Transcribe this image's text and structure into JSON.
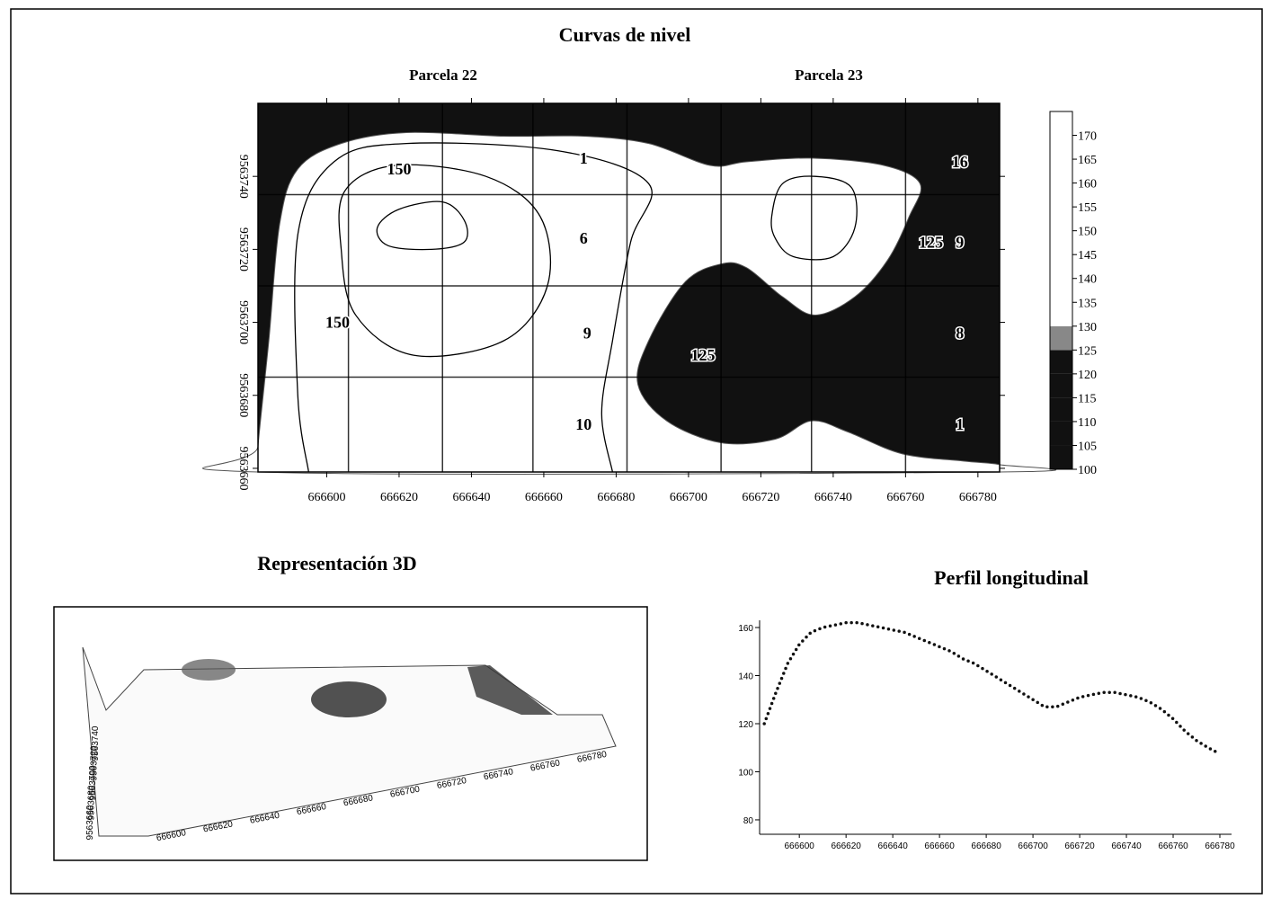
{
  "chart_data": [
    {
      "type": "contour",
      "title": "Curvas de nivel",
      "top_labels": [
        "Parcela 22",
        "Parcela 23"
      ],
      "xlim": [
        666581,
        666786
      ],
      "xticks": [
        666600,
        666620,
        666640,
        666660,
        666680,
        666700,
        666720,
        666740,
        666760,
        666780
      ],
      "ylim": [
        9563659,
        9563760
      ],
      "yticks": [
        9563660,
        9563680,
        9563700,
        9563720,
        9563740
      ],
      "parcel_grid": {
        "x": [
          666606,
          666632,
          666657,
          666683,
          666709,
          666734,
          666760
        ],
        "y": [
          9563735,
          9563710,
          9563685
        ]
      },
      "light_area": {
        "x": [
          666581,
          666584,
          666587,
          666592,
          666604,
          666622,
          666649,
          666671,
          666689,
          666706,
          666716,
          666734,
          666754,
          666764,
          666761,
          666755,
          666746,
          666735,
          666726,
          666716,
          666709,
          666699,
          666689,
          666686,
          666694,
          666709,
          666724,
          666734,
          666744,
          666759,
          666776,
          666786,
          666786,
          666581
        ],
        "y": [
          9563666,
          9563695,
          9563727,
          9563742,
          9563749,
          9563752,
          9563751,
          9563751,
          9563749,
          9563743,
          9563744,
          9563745,
          9563743,
          9563738,
          9563729,
          9563717,
          9563707,
          9563702,
          9563707,
          9563715,
          9563716,
          9563711,
          9563695,
          9563683,
          9563673,
          9563667,
          9563668,
          9563673,
          9563670,
          9563664,
          9563662,
          9563661,
          9563659,
          9563659
        ]
      },
      "contours": [
        {
          "x": [
            666614,
            666620,
            666632,
            666638,
            666638,
            666629,
            666617
          ],
          "y": [
            9563726,
            9563731,
            9563733,
            9563728,
            9563722,
            9563720,
            9563721
          ],
          "closed": true
        },
        {
          "x": [
            666604,
            666605,
            666619,
            666644,
            666659,
            666661,
            666649,
            666624,
            666608
          ],
          "y": [
            9563720,
            9563736,
            9563743,
            9563740,
            9563729,
            9563710,
            9563695,
            9563691,
            9563702
          ],
          "closed": true
        },
        {
          "x": [
            666595,
            666592,
            666592,
            666602,
            666622,
            666664,
            666689,
            666684,
            666679,
            666676,
            666679
          ],
          "y": [
            9563659,
            9563680,
            9563724,
            9563744,
            9563749,
            9563747,
            9563738,
            9563722,
            9563695,
            9563675,
            9563659
          ],
          "closed": false
        },
        {
          "x": [
            666723,
            666726,
            666735,
            666745,
            666746,
            666740,
            666729,
            666724
          ],
          "y": [
            9563729,
            9563738,
            9563740,
            9563737,
            9563726,
            9563718,
            9563718,
            9563723
          ],
          "closed": true
        }
      ],
      "annotations": [
        {
          "text": "150",
          "x": 666620,
          "y": 9563742
        },
        {
          "text": "150",
          "x": 666603,
          "y": 9563700
        },
        {
          "text": "125",
          "x": 666767,
          "y": 9563722
        },
        {
          "text": "125",
          "x": 666704,
          "y": 9563691
        },
        {
          "text": "1",
          "x": 666671,
          "y": 9563745
        },
        {
          "text": "6",
          "x": 666671,
          "y": 9563723
        },
        {
          "text": "9",
          "x": 666672,
          "y": 9563697
        },
        {
          "text": "10",
          "x": 666671,
          "y": 9563672
        },
        {
          "text": "16",
          "x": 666775,
          "y": 9563744
        },
        {
          "text": "9",
          "x": 666775,
          "y": 9563722
        },
        {
          "text": "8",
          "x": 666775,
          "y": 9563697
        },
        {
          "text": "1",
          "x": 666775,
          "y": 9563672
        }
      ],
      "colorbar": {
        "lim": [
          100,
          175
        ],
        "ticks": [
          100,
          105,
          110,
          115,
          120,
          125,
          130,
          135,
          140,
          145,
          150,
          155,
          160,
          165,
          170
        ],
        "dark_below": 125,
        "speckle_below": 130
      }
    },
    {
      "type": "surface3d",
      "title": "Representación 3D",
      "xlim": [
        666590,
        666790
      ],
      "xticks": [
        666600,
        666620,
        666640,
        666660,
        666680,
        666700,
        666720,
        666740,
        666760,
        666780
      ],
      "yticks": [
        9563660,
        9563680,
        9563700,
        9563720,
        9563740
      ]
    },
    {
      "type": "line",
      "title": "Perfil longitudinal",
      "color": "#111111",
      "x": [
        666585,
        666590,
        666595,
        666600,
        666605,
        666610,
        666615,
        666620,
        666625,
        666630,
        666635,
        666640,
        666645,
        666650,
        666655,
        666660,
        666665,
        666670,
        666675,
        666680,
        666685,
        666690,
        666695,
        666700,
        666705,
        666710,
        666715,
        666720,
        666725,
        666730,
        666735,
        666740,
        666745,
        666750,
        666755,
        666760,
        666765,
        666770,
        666775,
        666780
      ],
      "values": [
        120,
        133,
        145,
        153,
        158,
        160,
        161,
        162,
        162,
        161,
        160,
        159,
        158,
        156,
        154,
        152,
        150,
        147,
        145,
        142,
        139,
        136,
        133,
        130,
        127,
        127,
        129,
        131,
        132,
        133,
        133,
        132,
        131,
        129,
        126,
        122,
        117,
        113,
        110,
        107.5
      ],
      "xlim": [
        666583,
        666785
      ],
      "xticks": [
        666600,
        666620,
        666640,
        666660,
        666680,
        666700,
        666720,
        666740,
        666760,
        666780
      ],
      "ylim": [
        74,
        163
      ],
      "yticks": [
        80,
        100,
        120,
        140,
        160
      ]
    }
  ]
}
